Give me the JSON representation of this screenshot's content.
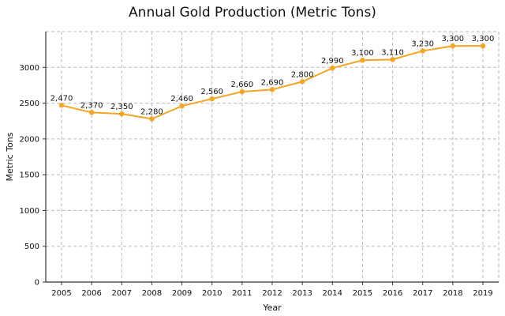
{
  "colors": {
    "series": "#f5a524",
    "grid": "#bbbbbb",
    "axis": "#333333",
    "text": "#111111"
  },
  "chart_data": {
    "type": "line",
    "title": "Annual Gold Production (Metric Tons)",
    "xlabel": "Year",
    "ylabel": "Metric Tons",
    "grid": true,
    "ylim": [
      0,
      3500
    ],
    "yticks": [
      0,
      500,
      1000,
      1500,
      2000,
      2500,
      3000
    ],
    "x": [
      "2005",
      "2006",
      "2007",
      "2008",
      "2009",
      "2010",
      "2011",
      "2012",
      "2013",
      "2014",
      "2015",
      "2016",
      "2017",
      "2018",
      "2019"
    ],
    "series": [
      {
        "values": [
          2470,
          2370,
          2350,
          2280,
          2460,
          2560,
          2660,
          2690,
          2800,
          2990,
          3100,
          3110,
          3230,
          3300,
          3300
        ],
        "labels": [
          "2,470",
          "2,370",
          "2,350",
          "2,280",
          "2,460",
          "2,560",
          "2,660",
          "2,690",
          "2,800",
          "2,990",
          "3,100",
          "3,110",
          "3,230",
          "3,300",
          "3,300"
        ]
      }
    ]
  }
}
